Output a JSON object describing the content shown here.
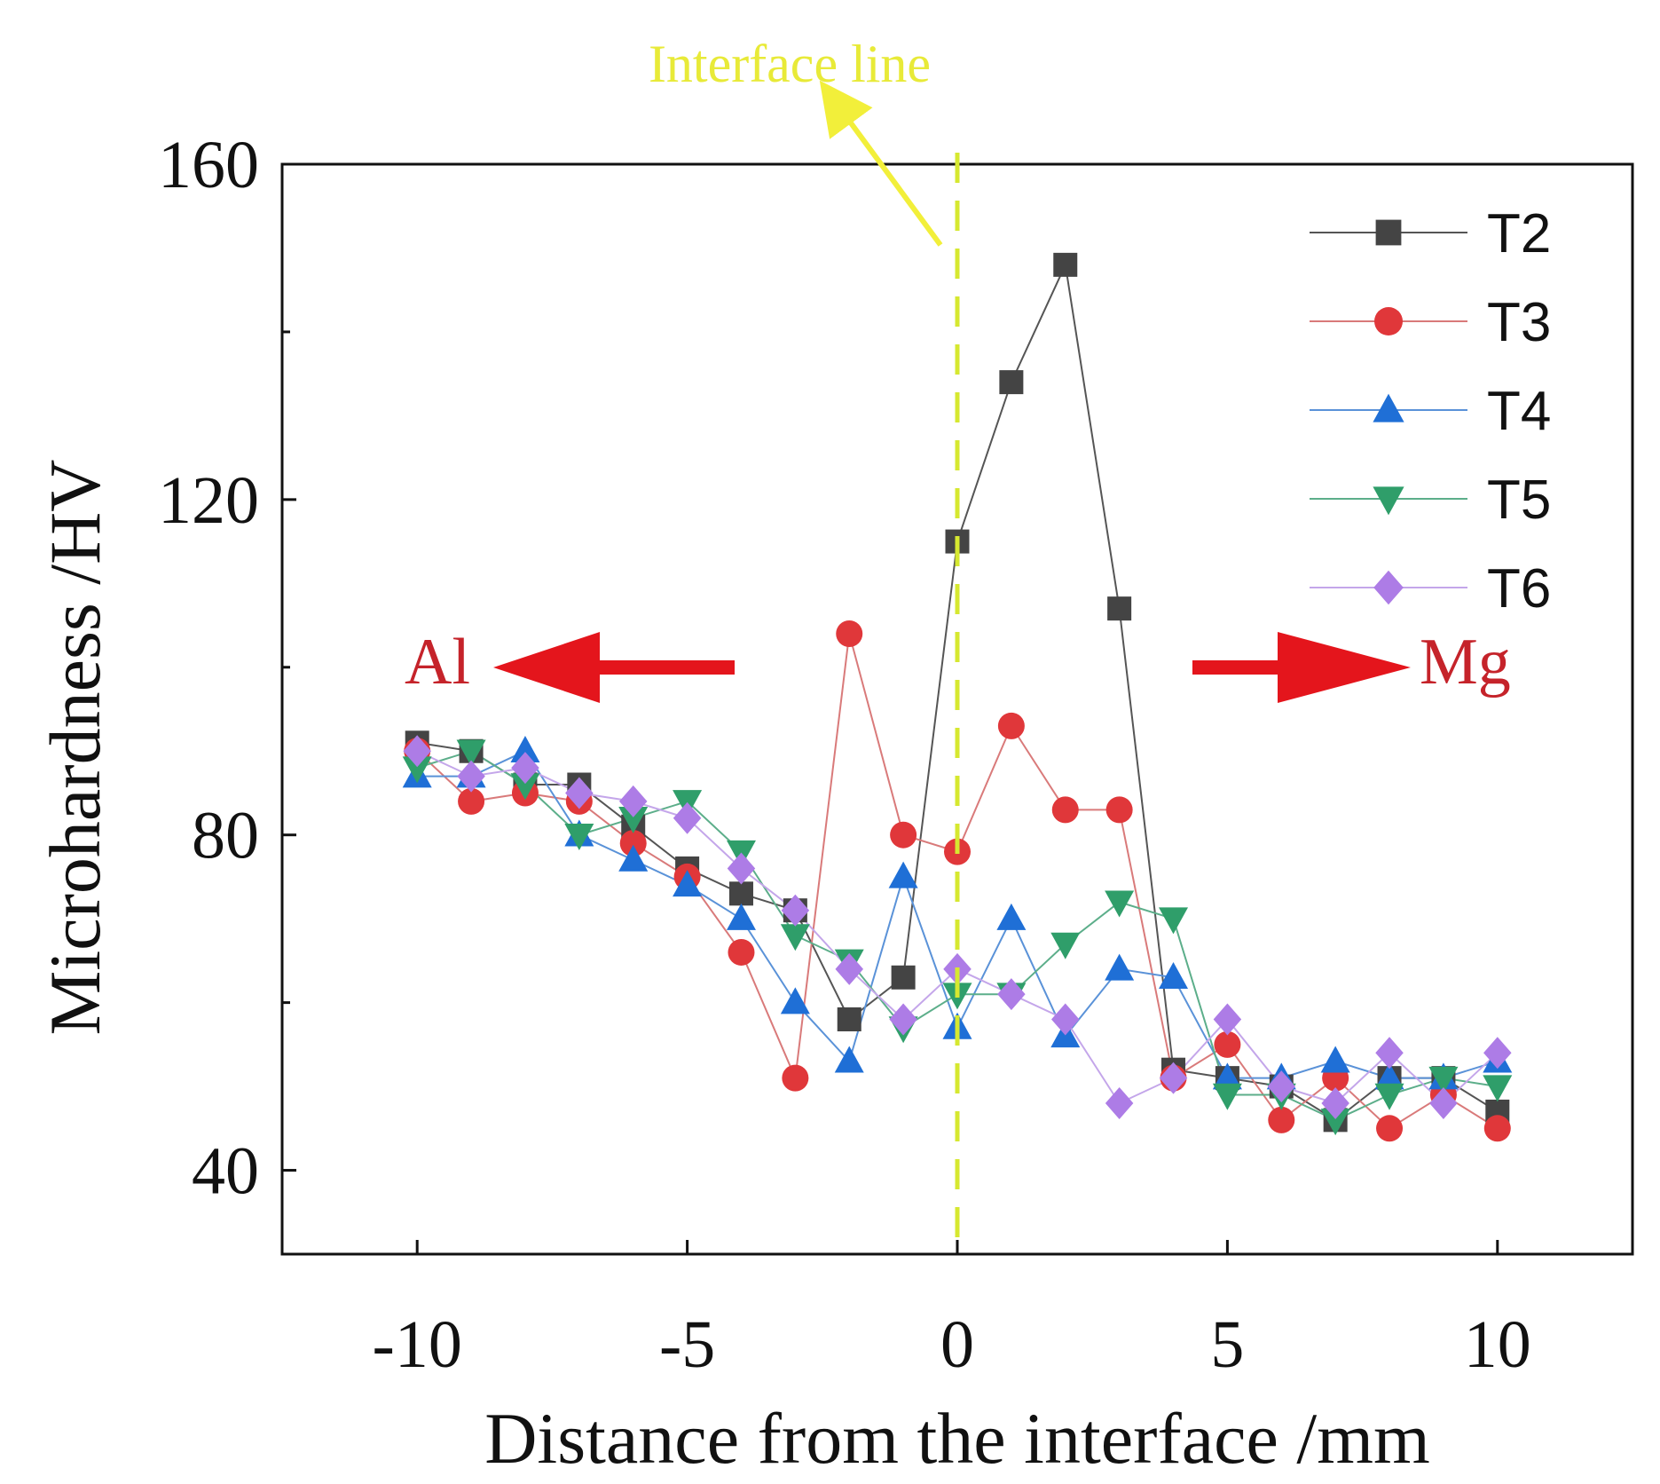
{
  "chart_data": {
    "type": "line",
    "xlabel": "Distance from the interface /mm",
    "ylabel": "Microhardness /HV",
    "xlim": [
      -12.5,
      12.5
    ],
    "ylim": [
      30,
      160
    ],
    "xticks": [
      -10,
      -5,
      0,
      5,
      10
    ],
    "yticks": [
      40,
      80,
      120,
      160
    ],
    "legend_position": "top-right",
    "annotations": {
      "interface_line": {
        "label": "Interface line",
        "x": 0,
        "color": "#d6e830",
        "text_color": "#e8ea38"
      },
      "left_material": {
        "label": "Al",
        "color": "#e4151c",
        "text_color": "#c5232a"
      },
      "right_material": {
        "label": "Mg",
        "color": "#e4151c",
        "text_color": "#c5232a"
      }
    },
    "x": [
      -10,
      -9,
      -8,
      -7,
      -6,
      -5,
      -4,
      -3,
      -2,
      -1,
      0,
      1,
      2,
      3,
      4,
      5,
      6,
      7,
      8,
      9,
      10
    ],
    "series": [
      {
        "name": "T2",
        "marker": "square",
        "color": "#444444",
        "line_color": "#555555",
        "values": [
          91,
          90,
          86,
          86,
          81,
          76,
          73,
          71,
          58,
          63,
          115,
          134,
          148,
          107,
          52,
          51,
          50,
          46,
          51,
          51,
          47
        ]
      },
      {
        "name": "T3",
        "marker": "circle",
        "color": "#e0373a",
        "line_color": "#d97a7a",
        "values": [
          90,
          84,
          85,
          84,
          79,
          75,
          66,
          51,
          104,
          80,
          78,
          93,
          83,
          83,
          51,
          55,
          46,
          51,
          45,
          49,
          45
        ]
      },
      {
        "name": "T4",
        "marker": "triangle-up",
        "color": "#1f6fd6",
        "line_color": "#5a92d8",
        "values": [
          87,
          87,
          90,
          80,
          77,
          74,
          70,
          60,
          53,
          75,
          57,
          70,
          56,
          64,
          63,
          51,
          51,
          53,
          51,
          51,
          53
        ]
      },
      {
        "name": "T5",
        "marker": "triangle-down",
        "color": "#2f9e6a",
        "line_color": "#5cae8a",
        "values": [
          88,
          90,
          86,
          80,
          82,
          84,
          78,
          68,
          65,
          57,
          61,
          61,
          67,
          72,
          70,
          49,
          49,
          46,
          49,
          51,
          50
        ]
      },
      {
        "name": "T6",
        "marker": "diamond",
        "color": "#ad7ce6",
        "line_color": "#c4a6ea",
        "values": [
          90,
          87,
          88,
          85,
          84,
          82,
          76,
          71,
          64,
          58,
          64,
          61,
          58,
          48,
          51,
          58,
          50,
          48,
          54,
          48,
          54
        ]
      }
    ]
  }
}
